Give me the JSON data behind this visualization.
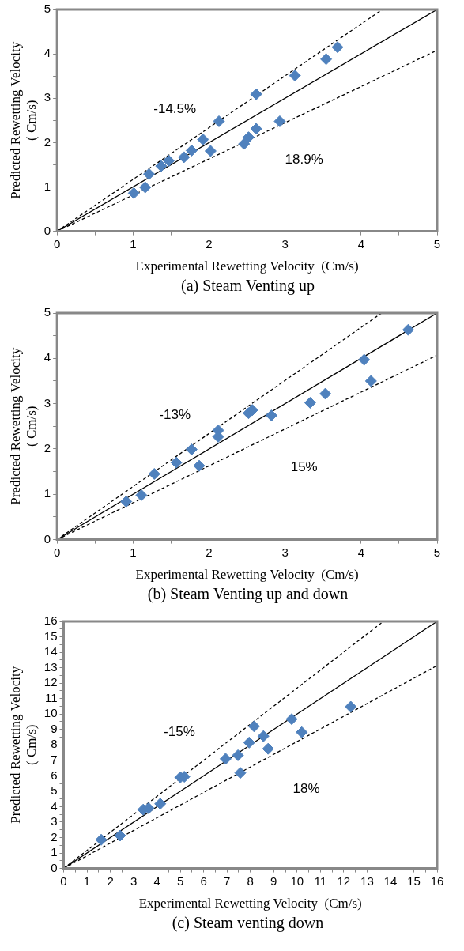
{
  "chart_data": [
    {
      "type": "scatter",
      "title": "(a) Steam Venting up",
      "xlabel": "Experimental Rewetting Velocity  (Cm/s)",
      "ylabel": "Predicted Rewetting Velocity\n( Cm/s)",
      "xlim": [
        0,
        5
      ],
      "ylim": [
        0,
        5
      ],
      "xticks": [
        0,
        {
          "value": 0.5,
          "label": null
        },
        1,
        {
          "value": 1.5,
          "label": null
        },
        2,
        {
          "value": 2.5,
          "label": null
        },
        3,
        {
          "value": 3.5,
          "label": null
        },
        4,
        {
          "value": 4.5,
          "label": null
        },
        5
      ],
      "yticks": [
        0,
        {
          "value": 0.5,
          "label": null
        },
        1,
        {
          "value": 1.5,
          "label": null
        },
        2,
        {
          "value": 2.5,
          "label": null
        },
        3,
        {
          "value": 3.5,
          "label": null
        },
        4,
        {
          "value": 4.5,
          "label": null
        },
        5
      ],
      "grid": false,
      "legend": false,
      "series": [
        {
          "color": "#4f81bd",
          "marker": "diamond",
          "x": [
            1.01,
            1.16,
            1.21,
            1.37,
            1.47,
            1.67,
            1.77,
            1.92,
            2.02,
            2.13,
            2.46,
            2.52,
            2.62,
            2.62,
            2.93,
            3.13,
            3.54,
            3.69
          ],
          "values": [
            0.86,
            0.99,
            1.29,
            1.47,
            1.59,
            1.67,
            1.82,
            2.07,
            1.81,
            2.48,
            1.97,
            2.12,
            2.31,
            3.09,
            2.48,
            3.51,
            3.88,
            4.15
          ]
        },
        {
          "type": "line",
          "color": "#000000",
          "marker": "none",
          "line_style": "solid",
          "x": [
            0,
            5
          ],
          "values": [
            0,
            5
          ]
        },
        {
          "type": "line",
          "color": "#000000",
          "marker": "none",
          "line_style": "dashed",
          "x": [
            0,
            4.28
          ],
          "values": [
            0,
            5
          ]
        },
        {
          "type": "line",
          "color": "#000000",
          "marker": "none",
          "line_style": "dashed",
          "x": [
            0,
            5
          ],
          "values": [
            0,
            4.08
          ]
        }
      ],
      "annotations": [
        "-14.5%",
        "18.9%"
      ]
    },
    {
      "type": "scatter",
      "title": "(b) Steam Venting up and down",
      "xlabel": "Experimental Rewetting Velocity  (Cm/s)",
      "ylabel": "Predicted Rewetting Velocity\n( Cm/s)",
      "xlim": [
        0,
        5
      ],
      "ylim": [
        0,
        5
      ],
      "xticks": [
        0,
        {
          "value": 0.5,
          "label": null
        },
        1,
        {
          "value": 1.5,
          "label": null
        },
        2,
        {
          "value": 2.5,
          "label": null
        },
        3,
        {
          "value": 3.5,
          "label": null
        },
        4,
        {
          "value": 4.5,
          "label": null
        },
        5
      ],
      "yticks": [
        0,
        {
          "value": 0.5,
          "label": null
        },
        1,
        {
          "value": 1.5,
          "label": null
        },
        2,
        {
          "value": 2.5,
          "label": null
        },
        3,
        {
          "value": 3.5,
          "label": null
        },
        4,
        {
          "value": 4.5,
          "label": null
        },
        5
      ],
      "grid": false,
      "legend": false,
      "series": [
        {
          "color": "#4f81bd",
          "marker": "diamond",
          "x": [
            0.91,
            1.11,
            1.28,
            1.57,
            1.77,
            1.87,
            2.12,
            2.12,
            2.52,
            2.57,
            2.82,
            3.33,
            3.53,
            4.04,
            4.13,
            4.62
          ],
          "values": [
            0.84,
            0.98,
            1.45,
            1.7,
            1.99,
            1.63,
            2.41,
            2.27,
            2.79,
            2.86,
            2.74,
            3.02,
            3.22,
            3.97,
            3.5,
            4.63
          ]
        },
        {
          "type": "line",
          "color": "#000000",
          "marker": "none",
          "line_style": "solid",
          "x": [
            0,
            5
          ],
          "values": [
            0,
            5
          ]
        },
        {
          "type": "line",
          "color": "#000000",
          "marker": "none",
          "line_style": "dashed",
          "x": [
            0,
            4.27
          ],
          "values": [
            0,
            5
          ]
        },
        {
          "type": "line",
          "color": "#000000",
          "marker": "none",
          "line_style": "dashed",
          "x": [
            0,
            5
          ],
          "values": [
            0,
            4.07
          ]
        }
      ],
      "annotations": [
        "-13%",
        "15%"
      ]
    },
    {
      "type": "scatter",
      "title": "(c) Steam venting down",
      "xlabel": "Experimental Rewetting Velocity  (Cm/s)",
      "ylabel": "Predicted Rewetting Velocity\n( Cm/s)",
      "xlim": [
        0,
        16
      ],
      "ylim": [
        0,
        16
      ],
      "xticks": [
        0,
        {
          "value": 0.5,
          "label": null
        },
        1,
        {
          "value": 1.5,
          "label": null
        },
        2,
        {
          "value": 2.5,
          "label": null
        },
        3,
        {
          "value": 3.5,
          "label": null
        },
        4,
        {
          "value": 4.5,
          "label": null
        },
        5,
        {
          "value": 5.5,
          "label": null
        },
        6,
        {
          "value": 6.5,
          "label": null
        },
        7,
        {
          "value": 7.5,
          "label": null
        },
        8,
        {
          "value": 8.5,
          "label": null
        },
        9,
        {
          "value": 9.5,
          "label": null
        },
        10,
        {
          "value": 10.5,
          "label": null
        },
        11,
        {
          "value": 11.5,
          "label": null
        },
        12,
        {
          "value": 12.5,
          "label": null
        },
        13,
        {
          "value": 13.5,
          "label": null
        },
        14,
        {
          "value": 14.5,
          "label": null
        },
        15,
        {
          "value": 15.5,
          "label": null
        },
        16
      ],
      "yticks": [
        0,
        {
          "value": 0.5,
          "label": null
        },
        1,
        {
          "value": 1.5,
          "label": null
        },
        2,
        {
          "value": 2.5,
          "label": null
        },
        3,
        {
          "value": 3.5,
          "label": null
        },
        4,
        {
          "value": 4.5,
          "label": null
        },
        5,
        {
          "value": 5.5,
          "label": null
        },
        6,
        {
          "value": 6.5,
          "label": null
        },
        7,
        {
          "value": 7.5,
          "label": null
        },
        8,
        {
          "value": 8.5,
          "label": null
        },
        9,
        {
          "value": 9.5,
          "label": null
        },
        10,
        {
          "value": 10.5,
          "label": null
        },
        11,
        {
          "value": 11.5,
          "label": null
        },
        12,
        {
          "value": 12.5,
          "label": null
        },
        13,
        {
          "value": 13.5,
          "label": null
        },
        14,
        {
          "value": 14.5,
          "label": null
        },
        15,
        {
          "value": 15.5,
          "label": null
        },
        16
      ],
      "grid": false,
      "legend": false,
      "series": [
        {
          "color": "#4f81bd",
          "marker": "diamond",
          "x": [
            1.61,
            2.42,
            3.41,
            3.64,
            4.14,
            5.0,
            5.17,
            6.94,
            7.47,
            7.57,
            7.95,
            8.16,
            8.56,
            8.76,
            9.77,
            10.2,
            12.3
          ],
          "values": [
            1.86,
            2.13,
            3.81,
            3.9,
            4.19,
            5.9,
            5.94,
            7.1,
            7.33,
            6.19,
            8.15,
            9.2,
            8.57,
            7.75,
            9.67,
            8.82,
            10.47
          ]
        },
        {
          "type": "line",
          "color": "#000000",
          "marker": "none",
          "line_style": "solid",
          "x": [
            0,
            16
          ],
          "values": [
            0,
            16
          ]
        },
        {
          "type": "line",
          "color": "#000000",
          "marker": "none",
          "line_style": "dashed",
          "x": [
            0,
            13.7
          ],
          "values": [
            0,
            16
          ]
        },
        {
          "type": "line",
          "color": "#000000",
          "marker": "none",
          "line_style": "dashed",
          "x": [
            0,
            16
          ],
          "values": [
            0,
            13.14
          ]
        }
      ],
      "annotations": [
        "-15%",
        "18%"
      ]
    }
  ]
}
